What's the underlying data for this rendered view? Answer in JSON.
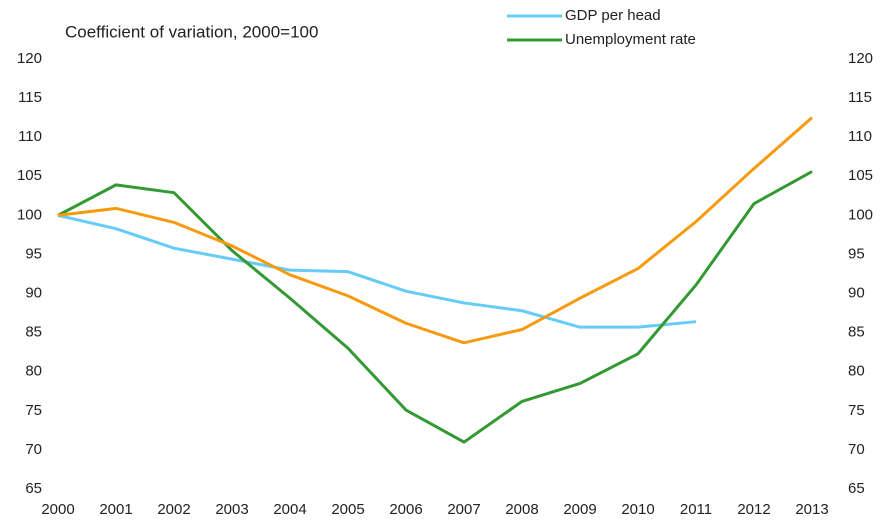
{
  "chart_data": {
    "type": "line",
    "title": "Coefficient of variation, 2000=100",
    "categories": [
      "2000",
      "2001",
      "2002",
      "2003",
      "2004",
      "2005",
      "2006",
      "2007",
      "2008",
      "2009",
      "2010",
      "2011",
      "2012",
      "2013"
    ],
    "series": [
      {
        "name": "GDP per head",
        "color": "#66ccf7",
        "values": [
          100,
          98.3,
          95.8,
          94.4,
          93.0,
          92.8,
          90.3,
          88.8,
          87.8,
          85.7,
          85.7,
          86.4,
          null,
          null
        ]
      },
      {
        "name": "Unemployment rate",
        "color": "#339933",
        "values": [
          100,
          103.9,
          102.9,
          95.5,
          89.4,
          83.0,
          75.1,
          71.0,
          76.2,
          78.5,
          82.3,
          91.1,
          101.5,
          105.6
        ]
      },
      {
        "color": "#f79a0e",
        "values": [
          100,
          100.9,
          99.1,
          96.1,
          92.4,
          89.7,
          86.2,
          83.7,
          85.4,
          89.4,
          93.2,
          99.2,
          106.0,
          112.5
        ]
      }
    ],
    "ylim": [
      65,
      120
    ],
    "yticks": [
      65,
      70,
      75,
      80,
      85,
      90,
      95,
      100,
      105,
      110,
      115,
      120
    ],
    "y2lim": [
      65,
      120
    ],
    "y2ticks": [
      65,
      70,
      75,
      80,
      85,
      90,
      95,
      100,
      105,
      110,
      115,
      120
    ],
    "grid": false
  }
}
